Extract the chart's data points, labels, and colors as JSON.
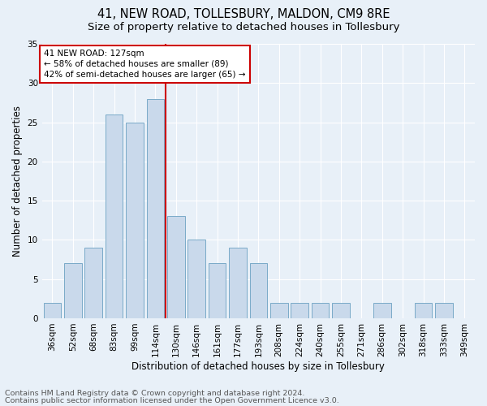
{
  "title": "41, NEW ROAD, TOLLESBURY, MALDON, CM9 8RE",
  "subtitle": "Size of property relative to detached houses in Tollesbury",
  "xlabel": "Distribution of detached houses by size in Tollesbury",
  "ylabel": "Number of detached properties",
  "footnote1": "Contains HM Land Registry data © Crown copyright and database right 2024.",
  "footnote2": "Contains public sector information licensed under the Open Government Licence v3.0.",
  "annotation_line1": "41 NEW ROAD: 127sqm",
  "annotation_line2": "← 58% of detached houses are smaller (89)",
  "annotation_line3": "42% of semi-detached houses are larger (65) →",
  "bar_color": "#c9d9eb",
  "bar_edgecolor": "#7aaac8",
  "vline_color": "#cc0000",
  "categories": [
    "36sqm",
    "52sqm",
    "68sqm",
    "83sqm",
    "99sqm",
    "114sqm",
    "130sqm",
    "146sqm",
    "161sqm",
    "177sqm",
    "193sqm",
    "208sqm",
    "224sqm",
    "240sqm",
    "255sqm",
    "271sqm",
    "286sqm",
    "302sqm",
    "318sqm",
    "333sqm",
    "349sqm"
  ],
  "values": [
    2,
    7,
    9,
    26,
    25,
    28,
    13,
    10,
    7,
    9,
    7,
    2,
    2,
    2,
    2,
    0,
    2,
    0,
    2,
    2,
    0
  ],
  "ylim": [
    0,
    35
  ],
  "yticks": [
    0,
    5,
    10,
    15,
    20,
    25,
    30,
    35
  ],
  "vline_x_index": 6,
  "background_color": "#e8f0f8",
  "grid_color": "#ffffff",
  "title_fontsize": 10.5,
  "subtitle_fontsize": 9.5,
  "ylabel_fontsize": 8.5,
  "tick_fontsize": 7.5,
  "annotation_fontsize": 7.5,
  "xlabel_fontsize": 8.5,
  "footnote_fontsize": 6.8
}
